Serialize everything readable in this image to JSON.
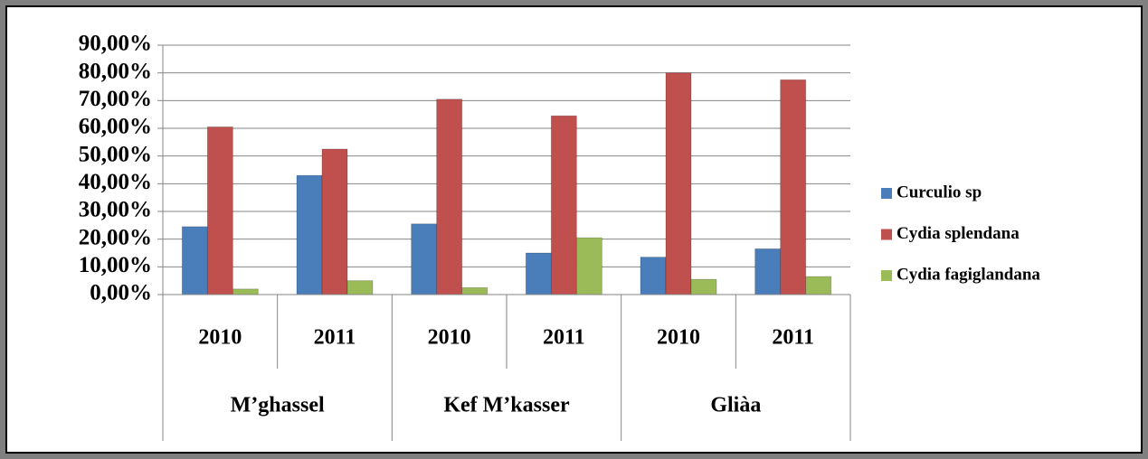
{
  "chart_data": {
    "type": "bar",
    "categories": [
      "2010",
      "2011",
      "2010",
      "2011",
      "2010",
      "2011"
    ],
    "category_groups": [
      "M’ghassel",
      "Kef M’kasser",
      "Gliàa"
    ],
    "series": [
      {
        "name": "Curculio sp",
        "color": "#4a7ebb",
        "values": [
          24.5,
          43,
          25.5,
          15,
          13.5,
          16.5
        ]
      },
      {
        "name": "Cydia splendana",
        "color": "#c0504d",
        "values": [
          60.5,
          52.5,
          70.5,
          64.5,
          80,
          77.5
        ]
      },
      {
        "name": "Cydia fagiglandana",
        "color": "#9bbb59",
        "values": [
          2,
          5,
          2.5,
          20.5,
          5.5,
          6.5
        ]
      }
    ],
    "ylim": [
      0,
      90
    ],
    "yticks": [
      {
        "value": 0,
        "label": "0,00%"
      },
      {
        "value": 10,
        "label": "10,00%"
      },
      {
        "value": 20,
        "label": "20,00%"
      },
      {
        "value": 30,
        "label": "30,00%"
      },
      {
        "value": 40,
        "label": "40,00%"
      },
      {
        "value": 50,
        "label": "50,00%"
      },
      {
        "value": 60,
        "label": "60,00%"
      },
      {
        "value": 70,
        "label": "70,00%"
      },
      {
        "value": 80,
        "label": "80,00%"
      },
      {
        "value": 90,
        "label": "90,00%"
      }
    ],
    "grid": true,
    "legend": "right"
  }
}
